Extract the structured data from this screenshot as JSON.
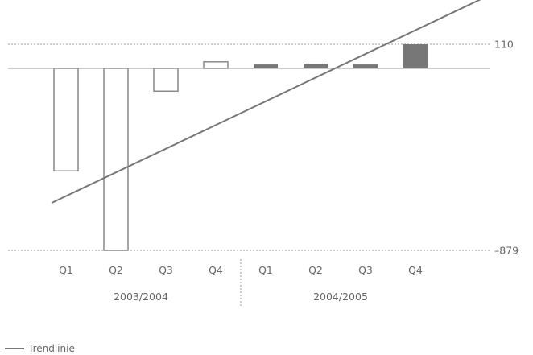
{
  "chart_data": {
    "type": "bar",
    "categories": [
      "Q1",
      "Q2",
      "Q3",
      "Q4",
      "Q1",
      "Q2",
      "Q3",
      "Q4"
    ],
    "groups": [
      {
        "label": "2003/2004",
        "categories": [
          "Q1",
          "Q2",
          "Q3",
          "Q4"
        ]
      },
      {
        "label": "2004/2005",
        "categories": [
          "Q1",
          "Q2",
          "Q3",
          "Q4"
        ]
      }
    ],
    "values": [
      -495,
      -879,
      -110,
      30,
      18,
      22,
      18,
      110
    ],
    "styles": [
      "outline",
      "outline",
      "outline",
      "outline",
      "filled",
      "filled",
      "filled",
      "filled"
    ],
    "reference_lines": [
      {
        "value": 110,
        "label": "110"
      },
      {
        "value": -879,
        "label": "–879"
      }
    ],
    "trendline": {
      "name": "Trendlinie",
      "start": -650,
      "end": 320
    },
    "ylim": [
      -879,
      320
    ],
    "legend": {
      "position": "bottom-left",
      "items": [
        {
          "label": "Trendlinie"
        }
      ]
    },
    "colors": {
      "bar_outline": "#888888",
      "bar_fill": "#777777",
      "trend": "#777777",
      "axis": "#999999",
      "text": "#666666"
    }
  }
}
